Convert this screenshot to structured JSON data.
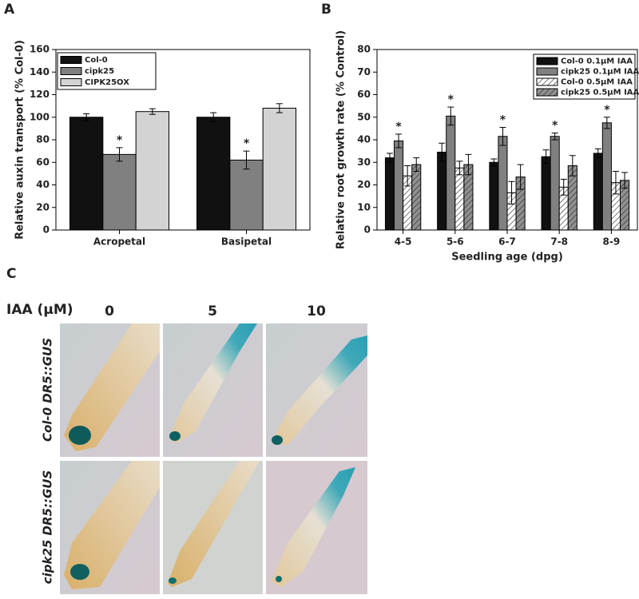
{
  "chart_data": [
    {
      "type": "bar",
      "panel": "A",
      "ylabel": "Relative auxin transport (% Col-0)",
      "categories": [
        "Acropetal",
        "Basipetal"
      ],
      "series": [
        {
          "name": "Col-0",
          "color": "#111111",
          "values": [
            100,
            100
          ],
          "errors": [
            3,
            4
          ]
        },
        {
          "name": "cipk25",
          "color": "#808080",
          "values": [
            67,
            62
          ],
          "errors": [
            6,
            8
          ],
          "significance": [
            "*",
            "*"
          ]
        },
        {
          "name": "CIPK25OX",
          "color": "#d3d3d3",
          "values": [
            105,
            108
          ],
          "errors": [
            2.5,
            4
          ]
        }
      ],
      "ylim": [
        0,
        160
      ],
      "yticks": [
        0,
        20,
        40,
        60,
        80,
        100,
        120,
        140,
        160
      ],
      "legend": "upper-left"
    },
    {
      "type": "bar",
      "panel": "B",
      "ylabel": "Relative root growth rate (% Control)",
      "xlabel": "Seedling age (dpg)",
      "categories": [
        "4-5",
        "5-6",
        "6-7",
        "7-8",
        "8-9"
      ],
      "series": [
        {
          "name": "Col-0 0.1μM IAA",
          "color": "#111111",
          "values": [
            32,
            34.5,
            30,
            32.5,
            34
          ],
          "errors": [
            2,
            4,
            1.5,
            3,
            2
          ]
        },
        {
          "name": "cipk25 0.1μM IAA",
          "color": "#808080",
          "values": [
            39.5,
            50.5,
            41.5,
            41.5,
            47.5
          ],
          "errors": [
            3,
            4,
            4,
            1.5,
            2.5
          ],
          "significance": [
            "*",
            "*",
            "*",
            "*",
            "*"
          ]
        },
        {
          "name": "Col-0 0.5μM IAA",
          "color": "#ffffff",
          "pattern": "hatch",
          "values": [
            24,
            27.5,
            16.5,
            19,
            21
          ],
          "errors": [
            4.5,
            3,
            5,
            3.5,
            5
          ]
        },
        {
          "name": "cipk25 0.5μM IAA",
          "color": "#909090",
          "pattern": "hatch",
          "values": [
            29,
            29,
            23.5,
            28.5,
            22
          ],
          "errors": [
            3,
            4.5,
            5.5,
            4.5,
            3.5
          ]
        }
      ],
      "ylim": [
        0,
        80
      ],
      "yticks": [
        0,
        10,
        20,
        30,
        40,
        50,
        60,
        70,
        80
      ],
      "legend": "upper-right"
    }
  ],
  "panel_c": {
    "panel": "C",
    "row_header": "IAA (μM)",
    "columns": [
      "0",
      "5",
      "10"
    ],
    "rows": [
      "Col-0 DR5::GUS",
      "cipk25 DR5::GUS"
    ]
  }
}
